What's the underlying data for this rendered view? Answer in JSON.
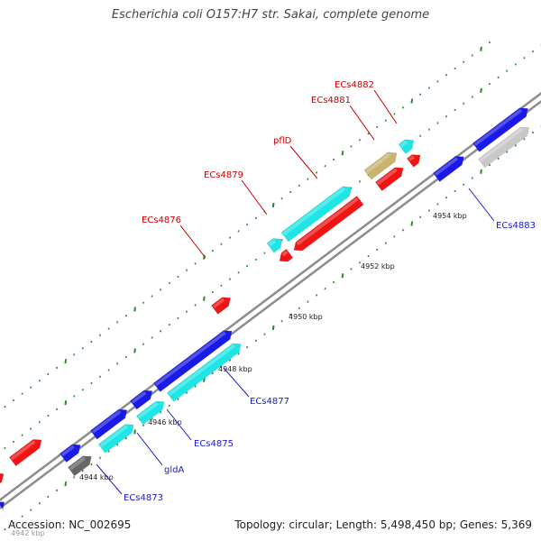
{
  "title": "Escherichia coli O157:H7 str. Sakai, complete genome",
  "footer": {
    "accession": "Accession: NC_002695",
    "summary": "Topology: circular; Length: 5,498,450 bp; Genes: 5,369"
  },
  "colors": {
    "forward_gene": "#1a1ae6",
    "reverse_gene": "#f01414",
    "rRNA_like": "#1ee6e6",
    "pseudo_gene": "#c8b46e",
    "other_gene": "#666666",
    "backbone": "#8c8c8c",
    "tick": "#2a8a2a",
    "red_label": "#cc0000",
    "blue_label": "#1a1acc"
  },
  "tick_labels": [
    "4942 kbp",
    "4944 kbp",
    "4946 kbp",
    "4948 kbp",
    "4950 kbp",
    "4952 kbp",
    "4954 kbp"
  ],
  "gene_labels": [
    {
      "id": "ECs4882",
      "strand": "reverse"
    },
    {
      "id": "ECs4881",
      "strand": "reverse"
    },
    {
      "id": "pflD",
      "strand": "reverse"
    },
    {
      "id": "ECs4879",
      "strand": "reverse"
    },
    {
      "id": "ECs4876",
      "strand": "reverse"
    },
    {
      "id": "ECs4883",
      "strand": "forward"
    },
    {
      "id": "ECs4877",
      "strand": "forward"
    },
    {
      "id": "ECs4875",
      "strand": "forward"
    },
    {
      "id": "gldA",
      "strand": "forward"
    },
    {
      "id": "ECs4873",
      "strand": "forward"
    }
  ]
}
